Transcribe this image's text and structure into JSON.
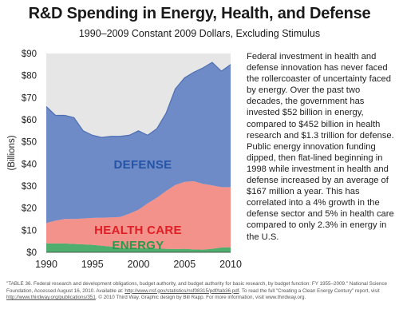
{
  "header": {
    "title": "R&D Spending in Energy, Health, and Defense",
    "subtitle": "1990–2009 Constant 2009 Dollars, Excluding Stimulus"
  },
  "chart_data": {
    "type": "area",
    "stacked": true,
    "title": "R&D Spending in Energy, Health, and Defense",
    "subtitle": "1990–2009 Constant 2009 Dollars, Excluding Stimulus",
    "xlabel": "",
    "ylabel": "(Billions)",
    "x": [
      1990,
      1991,
      1992,
      1993,
      1994,
      1995,
      1996,
      1997,
      1998,
      1999,
      2000,
      2001,
      2002,
      2003,
      2004,
      2005,
      2006,
      2007,
      2008,
      2009,
      2010
    ],
    "xlim": [
      1990,
      2010
    ],
    "ylim": [
      0,
      90
    ],
    "x_ticks": [
      "1990",
      "1995",
      "2000",
      "2005",
      "2010"
    ],
    "y_ticks": [
      "$0",
      "$10",
      "$20",
      "$30",
      "$40",
      "$50",
      "$60",
      "$70",
      "$80",
      "$90"
    ],
    "grid": false,
    "legend": "none (series labeled directly on areas)",
    "series": [
      {
        "name": "ENERGY",
        "color": "#4fae6e",
        "values": [
          4,
          4,
          4,
          3.8,
          3.6,
          3.4,
          3,
          2.6,
          2,
          1.9,
          1.8,
          1.8,
          1.7,
          1.6,
          1.5,
          1.6,
          1.3,
          1.2,
          1.6,
          2.2,
          2.3
        ]
      },
      {
        "name": "HEALTH CARE",
        "color": "#f2928a",
        "values": [
          9.3,
          10.3,
          11.1,
          11.3,
          11.7,
          12.2,
          12.7,
          13.2,
          14,
          15.6,
          17.5,
          20.4,
          23,
          26.2,
          29,
          30.3,
          30.9,
          29.8,
          28.7,
          27.3,
          27.2
        ]
      },
      {
        "name": "DEFENSE",
        "color": "#6e8bc7",
        "values": [
          52.7,
          47.7,
          46.9,
          45.9,
          39.7,
          37.4,
          36.3,
          36.7,
          36.5,
          35.5,
          35.7,
          30.8,
          31.3,
          35.2,
          43.5,
          47.1,
          49.3,
          52.5,
          55.7,
          52.5,
          55.5
        ]
      }
    ],
    "background_band": {
      "color": "#e6e6e6",
      "top_value": 90
    }
  },
  "paragraph": "Federal investment in health and defense innovation has never faced the rollercoaster of uncertainty faced by energy. Over the past two decades, the government has invested $52 billion in energy, compared to $452 billion in health research and $1.3 trillion for defense. Public energy innovation funding dipped, then flat-lined beginning in 1998 while investment in health and defense increased by an average of $167 million a year. This has correlated into a 4% growth in the defense sector and 5% in health care compared to only 2.3% in energy in the U.S.",
  "footnote": {
    "part1": "\"TABLE 36. Federal research and development obligations, budget authority, and budget authority for basic research, by budget function: FY 1955–2009.\" National Science Foundation, Accessed August 16, 2010. Available at: ",
    "link1": "http://www.nsf.gov/statistics/nsf08315/pdf/tab36.pdf",
    "part2": ". To read the full \"Creating a Clean Energy Century\" report, visit ",
    "link2": "http://www.thirdway.org/publications/351",
    "part3": ". © 2010 Third Way. Graphic design by Bill Rapp. For more information, visit www.thirdway.org."
  }
}
